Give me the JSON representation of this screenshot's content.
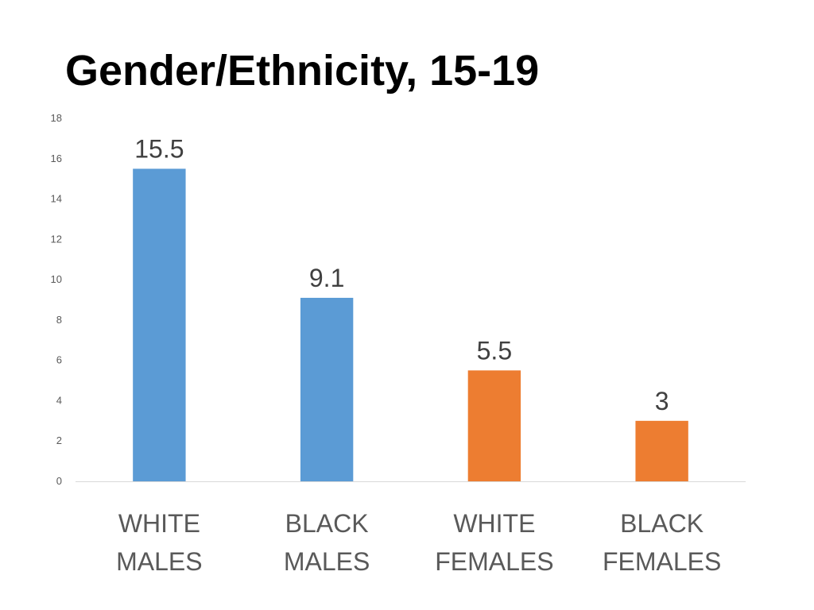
{
  "title": "Gender/Ethnicity, 15-19",
  "chart_data": {
    "type": "bar",
    "title": "Gender/Ethnicity, 15-19",
    "xlabel": "",
    "ylabel": "",
    "ylim": [
      0,
      18
    ],
    "yticks": [
      0,
      2,
      4,
      6,
      8,
      10,
      12,
      14,
      16,
      18
    ],
    "grid": false,
    "legend": "none",
    "categories": [
      [
        "WHITE",
        "MALES"
      ],
      [
        "BLACK",
        "MALES"
      ],
      [
        "WHITE",
        "FEMALES"
      ],
      [
        "BLACK",
        "FEMALES"
      ]
    ],
    "values": [
      15.5,
      9.1,
      5.5,
      3
    ],
    "value_labels": [
      "15.5",
      "9.1",
      "5.5",
      "3"
    ],
    "colors": [
      "#5B9BD5",
      "#5B9BD5",
      "#ED7D31",
      "#ED7D31"
    ]
  }
}
